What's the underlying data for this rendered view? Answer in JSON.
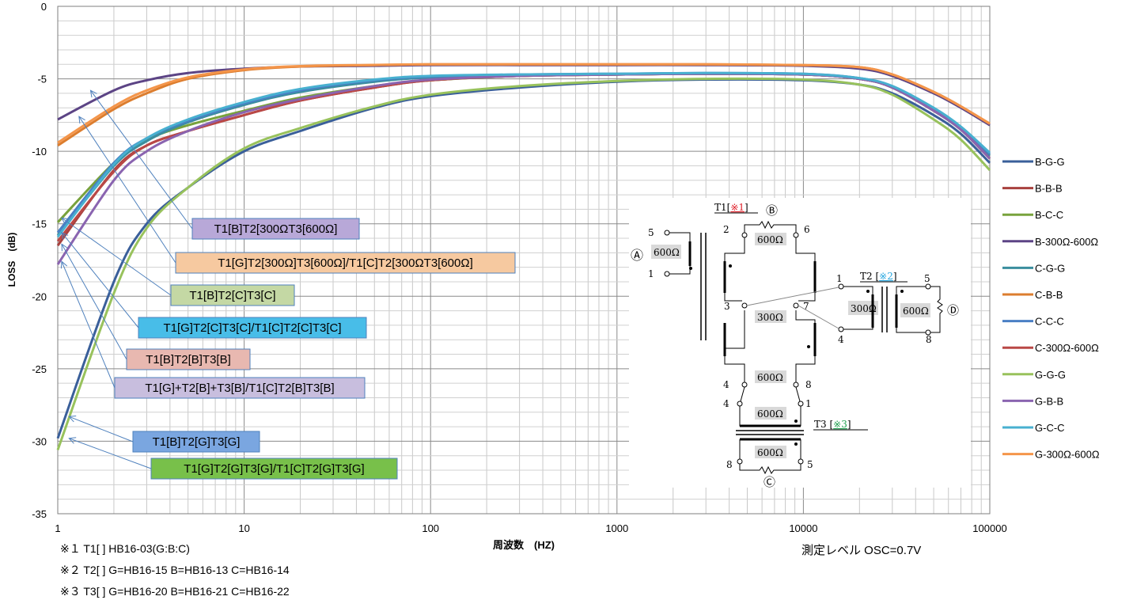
{
  "chart_data": {
    "type": "line",
    "title": "",
    "xlabel": "周波数　(HZ)",
    "ylabel": "LOSS　(dB)",
    "xscale": "log",
    "xlim": [
      1,
      100000
    ],
    "ylim": [
      -35,
      0
    ],
    "x_ticks": [
      "1",
      "10",
      "100",
      "1000",
      "10000",
      "100000"
    ],
    "y_ticks": [
      "0",
      "-5",
      "-10",
      "-15",
      "-20",
      "-25",
      "-30",
      "-35"
    ],
    "grid": true,
    "legend_position": "right",
    "x": [
      1,
      2,
      3,
      5,
      10,
      20,
      50,
      100,
      300,
      1000,
      3000,
      10000,
      20000,
      30000,
      50000,
      70000,
      100000
    ],
    "series": [
      {
        "name": "B-G-G",
        "color": "#3a5f9a",
        "values": [
          -29.8,
          -19.0,
          -15.0,
          -12.5,
          -10.0,
          -8.6,
          -7.0,
          -6.2,
          -5.6,
          -5.2,
          -5.05,
          -5.1,
          -5.4,
          -6.0,
          -7.5,
          -8.8,
          -10.8
        ]
      },
      {
        "name": "B-B-B",
        "color": "#a8413e",
        "values": [
          -16.5,
          -11.3,
          -9.6,
          -8.6,
          -7.5,
          -6.5,
          -5.6,
          -5.1,
          -4.8,
          -4.7,
          -4.65,
          -4.7,
          -5.0,
          -5.6,
          -7.2,
          -8.5,
          -10.5
        ]
      },
      {
        "name": "B-C-C",
        "color": "#78a23c",
        "values": [
          -14.9,
          -10.8,
          -9.2,
          -8.2,
          -7.2,
          -6.3,
          -5.5,
          -5.1,
          -4.8,
          -4.7,
          -4.65,
          -4.7,
          -5.0,
          -5.6,
          -7.2,
          -8.5,
          -10.5
        ]
      },
      {
        "name": "B-300Ω-600Ω",
        "color": "#5c4485",
        "values": [
          -7.8,
          -5.8,
          -5.1,
          -4.6,
          -4.3,
          -4.15,
          -4.1,
          -4.05,
          -4.05,
          -4.05,
          -4.05,
          -4.1,
          -4.3,
          -4.8,
          -6.0,
          -7.0,
          -8.2
        ]
      },
      {
        "name": "C-G-G",
        "color": "#3a8e9e",
        "values": [
          -15.8,
          -11.0,
          -9.3,
          -8.0,
          -6.8,
          -5.9,
          -5.2,
          -4.9,
          -4.75,
          -4.7,
          -4.65,
          -4.7,
          -5.0,
          -5.6,
          -7.2,
          -8.5,
          -10.3
        ]
      },
      {
        "name": "C-B-B",
        "color": "#dc7d2e",
        "values": [
          -9.6,
          -7.1,
          -6.0,
          -5.0,
          -4.4,
          -4.15,
          -4.05,
          -4.0,
          -4.0,
          -4.0,
          -4.0,
          -4.05,
          -4.2,
          -4.7,
          -5.9,
          -6.9,
          -8.1
        ]
      },
      {
        "name": "C-C-C",
        "color": "#4a7fc4",
        "values": [
          -15.6,
          -10.8,
          -9.1,
          -7.9,
          -6.7,
          -5.8,
          -5.1,
          -4.85,
          -4.7,
          -4.65,
          -4.6,
          -4.65,
          -4.95,
          -5.55,
          -7.1,
          -8.4,
          -10.2
        ]
      },
      {
        "name": "C-300Ω-600Ω",
        "color": "#b94846",
        "values": [
          -16.2,
          -11.4,
          -9.6,
          -8.6,
          -7.5,
          -6.5,
          -5.6,
          -5.1,
          -4.8,
          -4.7,
          -4.65,
          -4.7,
          -5.0,
          -5.6,
          -7.2,
          -8.5,
          -10.5
        ]
      },
      {
        "name": "G-G-G",
        "color": "#98c25c",
        "values": [
          -30.6,
          -19.8,
          -15.3,
          -12.5,
          -9.8,
          -8.4,
          -6.9,
          -6.1,
          -5.5,
          -5.15,
          -5.0,
          -5.05,
          -5.4,
          -6.1,
          -7.8,
          -9.2,
          -11.3
        ]
      },
      {
        "name": "G-B-B",
        "color": "#8a64b0",
        "values": [
          -17.8,
          -12.0,
          -10.0,
          -8.6,
          -7.3,
          -6.4,
          -5.5,
          -5.05,
          -4.8,
          -4.7,
          -4.65,
          -4.7,
          -5.0,
          -5.6,
          -7.2,
          -8.5,
          -10.5
        ]
      },
      {
        "name": "G-C-C",
        "color": "#48b0d0",
        "values": [
          -15.9,
          -10.9,
          -9.1,
          -7.8,
          -6.6,
          -5.7,
          -5.05,
          -4.8,
          -4.7,
          -4.65,
          -4.6,
          -4.65,
          -4.95,
          -5.5,
          -7.0,
          -8.3,
          -10.1
        ]
      },
      {
        "name": "G-300Ω-600Ω",
        "color": "#f4954a",
        "values": [
          -9.4,
          -6.9,
          -5.8,
          -4.9,
          -4.35,
          -4.12,
          -4.04,
          -4.0,
          -4.0,
          -4.0,
          -4.0,
          -4.05,
          -4.2,
          -4.7,
          -5.9,
          -6.9,
          -8.1
        ]
      }
    ],
    "annotations": [
      {
        "text": "T1[B]T2[300ΩT3[600Ω]",
        "fill": "#b8a8d8",
        "target_x": 1.5,
        "target_y": -5.8
      },
      {
        "text": "T1[G]T2[300Ω]T3[600Ω]/T1[C]T2[300ΩT3[600Ω]",
        "fill": "#f6c9a0",
        "target_x": 1.3,
        "target_y": -7.6
      },
      {
        "text": "T1[B]T2[C]T3[C]",
        "fill": "#c4d8a4",
        "target_x": 1.05,
        "target_y": -14.6
      },
      {
        "text": "T1[G]T2[C]T3[C]/T1[C]T2[C]T3[C]",
        "fill": "#48bde8",
        "target_x": 1.05,
        "target_y": -15.6
      },
      {
        "text": "T1[B]T2[B]T3[B]",
        "fill": "#e8b8b0",
        "target_x": 1.05,
        "target_y": -16.4
      },
      {
        "text": "T1[G]+T2[B]+T3[B]/T1[C]T2[B]T3[B]",
        "fill": "#c8bede",
        "target_x": 1.05,
        "target_y": -17.6
      },
      {
        "text": "T1[B]T2[G]T3[G]",
        "fill": "#7aa6e0",
        "target_x": 1.15,
        "target_y": -28.3
      },
      {
        "text": "T1[G]T2[G]T3[G]/T1[C]T2[G]T3[G]",
        "fill": "#78c04a",
        "target_x": 1.15,
        "target_y": -29.8
      }
    ]
  },
  "notes": {
    "note1": "※１ T1[ ] HB16-03(G:B:C)",
    "note2": "※２ T2[ ] G=HB16-15 B=HB16-13 C=HB16-14",
    "note3": "※３ T3[ ] G=HB16-20 B=HB16-21 C=HB16-22",
    "measure": "測定レベル OSC=0.7V"
  },
  "diagram": {
    "t1_label": "T1[",
    "t1_mark": "※1",
    "t2_label": "T2 [",
    "t2_mark": "※2",
    "t3_label": "T3 [",
    "t3_mark": "※3",
    "bracket_close": "]",
    "port_a": "Ⓐ",
    "port_b": "Ⓑ",
    "port_c": "Ⓒ",
    "port_d": "Ⓓ",
    "r600": "600Ω",
    "r300": "300Ω",
    "pins": {
      "p5": "5",
      "p1": "1",
      "p2": "2",
      "p6": "6",
      "p3": "3",
      "p7": "7",
      "p4": "4",
      "p8": "8"
    },
    "mark_red": "#e0202a",
    "mark_blue": "#2aa8e0",
    "mark_green": "#22a050"
  }
}
